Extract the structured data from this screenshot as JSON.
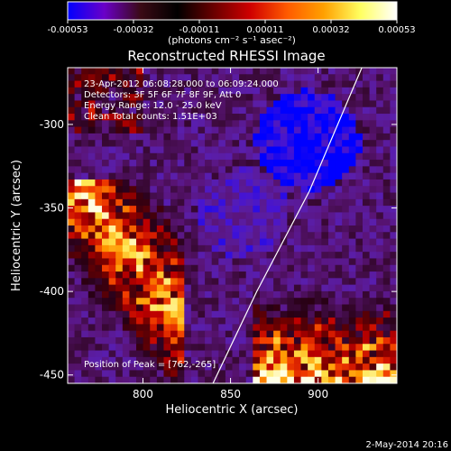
{
  "colorbar": {
    "tick_labels": [
      "-0.00053",
      "-0.00032",
      "-0.00011",
      "0.00011",
      "0.00032",
      "0.00053"
    ],
    "unit_label": "(photons cm⁻² s⁻¹ asec⁻²)",
    "colors": [
      "#0000ff",
      "#6a00c8",
      "#3a0a14",
      "#000000",
      "#6a0000",
      "#d00000",
      "#ff5a00",
      "#ffa000",
      "#ffff60",
      "#ffffff"
    ]
  },
  "annotations": {
    "time_range": "23-Apr-2012 06:08:28.000 to 06:09:24.000",
    "detectors": "Detectors: 3F 5F 6F 7F 8F 9F, Att 0",
    "energy": "Energy Range: 12.0 - 25.0 keV",
    "clean": "Clean    Total counts: 1.51E+03",
    "peak": "Position of Peak = [762,-265]"
  },
  "footer": {
    "date": "2-May-2014 20:16"
  },
  "chart_data": {
    "type": "heatmap",
    "title": "Reconstructed RHESSI Image",
    "xlabel": "Heliocentric X (arcsec)",
    "ylabel": "Heliocentric Y (arcsec)",
    "xlim": [
      757,
      945
    ],
    "ylim": [
      -455,
      -266
    ],
    "xticks": [
      800,
      850,
      900
    ],
    "yticks": [
      -300,
      -350,
      -400,
      -450
    ],
    "limb_line": [
      {
        "x": 840,
        "y": -455
      },
      {
        "x": 865,
        "y": -400
      },
      {
        "x": 895,
        "y": -340
      },
      {
        "x": 925,
        "y": -266
      }
    ],
    "peak_position": [
      762,
      -265
    ],
    "value_range": [
      -0.00053,
      0.00053
    ],
    "image_description": "noisy reconstructed flux map; bright positive emission along lower-left and bottom-right, negative blue region near upper center-right"
  }
}
